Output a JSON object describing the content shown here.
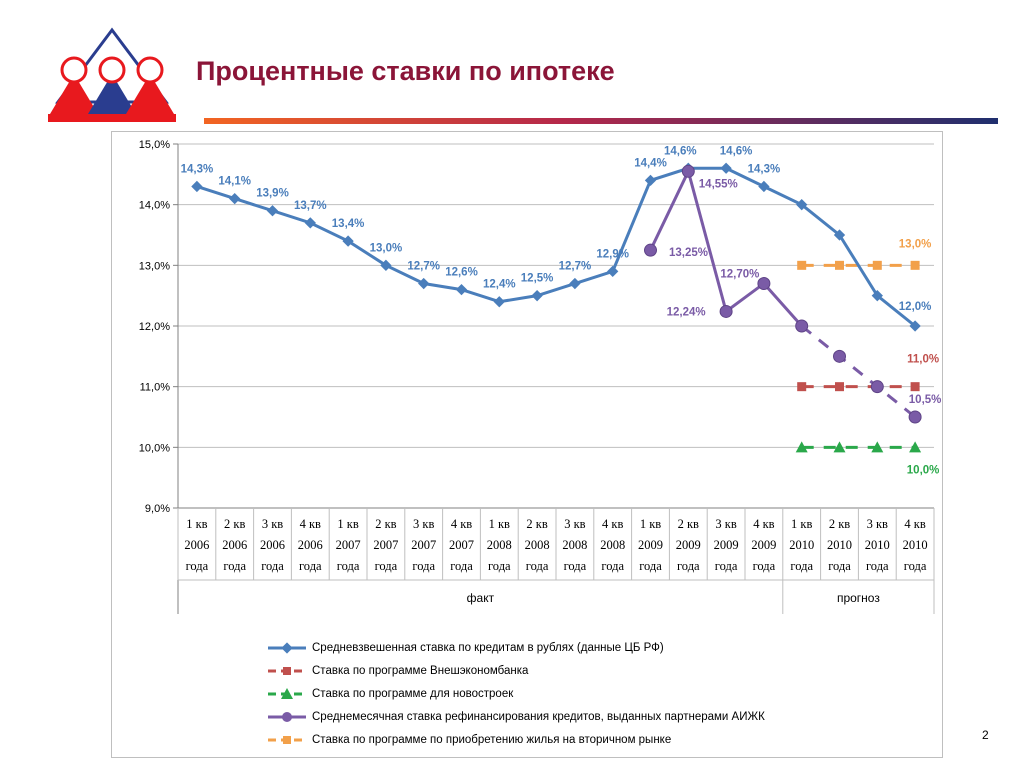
{
  "header": {
    "title": "Процентные ставки по ипотеке",
    "page_number": "2"
  },
  "colors": {
    "title": "#8b1538",
    "logo_red": "#e8191e",
    "logo_blue": "#2a3d8f",
    "bar_left": "#f26522",
    "bar_right": "#1f2f6e",
    "cbr": "#4a7ebb",
    "veb": "#c0504d",
    "new": "#2aa84a",
    "aijk": "#7a5ba6",
    "secondary": "#f2a04a"
  },
  "chart_data": {
    "type": "line",
    "ylim": [
      9,
      15
    ],
    "yticks": [
      "9,0%",
      "10,0%",
      "11,0%",
      "12,0%",
      "13,0%",
      "14,0%",
      "15,0%"
    ],
    "grid": true,
    "categories": [
      [
        "1 кв",
        "2006",
        "года"
      ],
      [
        "2 кв",
        "2006",
        "года"
      ],
      [
        "3 кв",
        "2006",
        "года"
      ],
      [
        "4 кв",
        "2006",
        "года"
      ],
      [
        "1 кв",
        "2007",
        "года"
      ],
      [
        "2 кв",
        "2007",
        "года"
      ],
      [
        "3 кв",
        "2007",
        "года"
      ],
      [
        "4 кв",
        "2007",
        "года"
      ],
      [
        "1 кв",
        "2008",
        "года"
      ],
      [
        "2 кв",
        "2008",
        "года"
      ],
      [
        "3 кв",
        "2008",
        "года"
      ],
      [
        "4 кв",
        "2008",
        "года"
      ],
      [
        "1 кв",
        "2009",
        "года"
      ],
      [
        "2 кв",
        "2009",
        "года"
      ],
      [
        "3 кв",
        "2009",
        "года"
      ],
      [
        "4 кв",
        "2009",
        "года"
      ],
      [
        "1 кв",
        "2010",
        "года"
      ],
      [
        "2 кв",
        "2010",
        "года"
      ],
      [
        "3 кв",
        "2010",
        "года"
      ],
      [
        "4 кв",
        "2010",
        "года"
      ]
    ],
    "groups": [
      {
        "label": "факт",
        "from": 0,
        "to": 15
      },
      {
        "label": "прогноз",
        "from": 16,
        "to": 19
      }
    ],
    "series": [
      {
        "key": "cbr",
        "name": "Средневзвешенная ставка по кредитам в рублях (данные ЦБ РФ)",
        "marker": "diamond",
        "values": [
          14.3,
          14.1,
          13.9,
          13.7,
          13.4,
          13.0,
          12.7,
          12.6,
          12.4,
          12.5,
          12.7,
          12.9,
          14.4,
          14.6,
          14.6,
          14.3,
          14.0,
          13.5,
          12.5,
          12.0
        ],
        "labels": [
          "14,3%",
          "14,1%",
          "13,9%",
          "13,7%",
          "13,4%",
          "13,0%",
          "12,7%",
          "12,6%",
          "12,4%",
          "12,5%",
          "12,7%",
          "12,9%",
          "14,4%",
          "14,6%",
          "14,6%",
          "14,3%",
          null,
          null,
          null,
          "12,0%"
        ]
      },
      {
        "key": "veb",
        "name": "Ставка по программе Внешэкономбанка",
        "marker": "square",
        "dashed": true,
        "values": [
          null,
          null,
          null,
          null,
          null,
          null,
          null,
          null,
          null,
          null,
          null,
          null,
          null,
          null,
          null,
          null,
          11.0,
          11.0,
          11.0,
          11.0
        ],
        "labels": [
          null,
          null,
          null,
          null,
          null,
          null,
          null,
          null,
          null,
          null,
          null,
          null,
          null,
          null,
          null,
          null,
          null,
          null,
          null,
          "11,0%"
        ]
      },
      {
        "key": "new",
        "name": "Ставка по программе для новостроек",
        "marker": "triangle",
        "dashed": true,
        "values": [
          null,
          null,
          null,
          null,
          null,
          null,
          null,
          null,
          null,
          null,
          null,
          null,
          null,
          null,
          null,
          null,
          10.0,
          10.0,
          10.0,
          10.0
        ],
        "labels": [
          null,
          null,
          null,
          null,
          null,
          null,
          null,
          null,
          null,
          null,
          null,
          null,
          null,
          null,
          null,
          null,
          null,
          null,
          null,
          "10,0%"
        ]
      },
      {
        "key": "aijk",
        "name": "Среднемесячная ставка рефинансирования кредитов, выданных партнерами АИЖК",
        "marker": "circle",
        "values": [
          null,
          null,
          null,
          null,
          null,
          null,
          null,
          null,
          null,
          null,
          null,
          null,
          13.25,
          14.55,
          12.24,
          12.7,
          12.0,
          11.5,
          11.0,
          10.5
        ],
        "labels": [
          null,
          null,
          null,
          null,
          null,
          null,
          null,
          null,
          null,
          null,
          null,
          null,
          "13,25%",
          "14,55%",
          "12,24%",
          "12,70%",
          null,
          null,
          null,
          "10,5%"
        ]
      },
      {
        "key": "secondary",
        "name": "Ставка по программе по приобретению жилья на вторичном рынке",
        "marker": "square",
        "dashed": true,
        "values": [
          null,
          null,
          null,
          null,
          null,
          null,
          null,
          null,
          null,
          null,
          null,
          null,
          null,
          null,
          null,
          null,
          13.0,
          13.0,
          13.0,
          13.0
        ],
        "labels": [
          null,
          null,
          null,
          null,
          null,
          null,
          null,
          null,
          null,
          null,
          null,
          null,
          null,
          null,
          null,
          null,
          null,
          null,
          null,
          "13,0%"
        ]
      }
    ]
  }
}
